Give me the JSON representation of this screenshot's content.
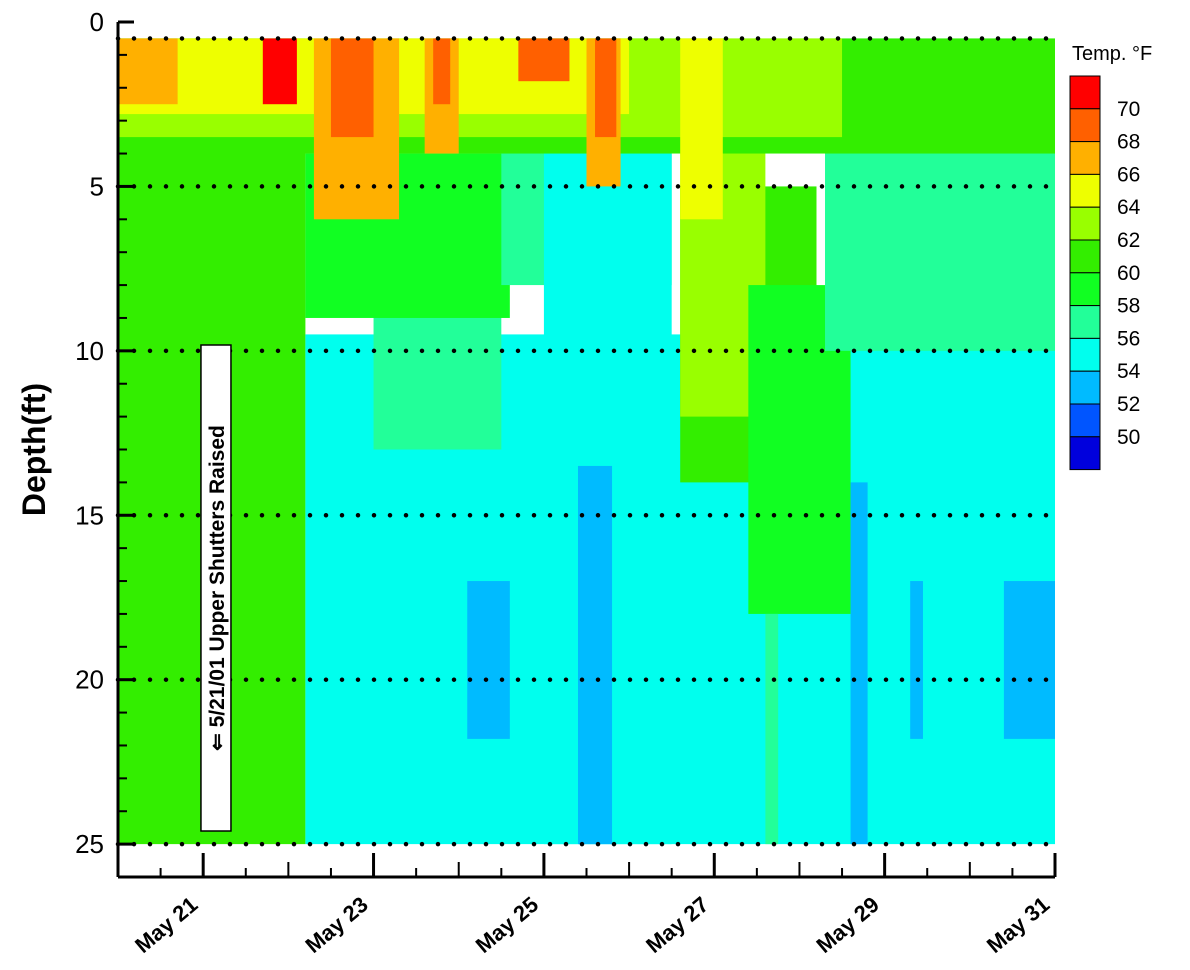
{
  "chart_data": {
    "type": "heatmap",
    "title": "",
    "xlabel": "",
    "ylabel": "Depth(ft)",
    "x_tick_labels": [
      "May 21",
      "May 23",
      "May 25",
      "May 27",
      "May 29",
      "May 31"
    ],
    "x_tick_days": [
      21,
      23,
      25,
      27,
      29,
      31
    ],
    "xlim_days": [
      20,
      31
    ],
    "y_ticks": [
      0,
      5,
      10,
      15,
      20,
      25
    ],
    "y_tick_labels": [
      "0",
      "5",
      "10",
      "15",
      "20",
      "25"
    ],
    "ylim": [
      0,
      26
    ],
    "y_inverted": true,
    "data_depth_range": [
      0.5,
      25
    ],
    "dotted_grid_depths": [
      0.5,
      5,
      10,
      15,
      20,
      25
    ],
    "legend": {
      "title": "Temp. °F",
      "position": "right",
      "levels": [
        {
          "label": "70",
          "color": "#ff0000"
        },
        {
          "label": "68",
          "color": "#ff6000"
        },
        {
          "label": "66",
          "color": "#ffb000"
        },
        {
          "label": "64",
          "color": "#eeff00"
        },
        {
          "label": "62",
          "color": "#99ff00"
        },
        {
          "label": "60",
          "color": "#33ee00"
        },
        {
          "label": "58",
          "color": "#11ff22"
        },
        {
          "label": "56",
          "color": "#22ff99"
        },
        {
          "label": "54",
          "color": "#00ffee"
        },
        {
          "label": "52",
          "color": "#00bbff"
        },
        {
          "label": "50",
          "color": "#0055ff"
        },
        {
          "label": "",
          "color": "#0000dd"
        }
      ]
    },
    "annotation": {
      "text": "⇐ 5/21/01  Upper Shutters Raised",
      "day": 21.15
    },
    "regions": [
      {
        "level": "60",
        "day_start": 20,
        "day_end": 22.2,
        "depth_top": 0.5,
        "depth_bottom": 25
      },
      {
        "level": "54",
        "day_start": 22.2,
        "day_end": 31,
        "depth_top": 9.5,
        "depth_bottom": 25
      },
      {
        "level": "56",
        "day_start": 23,
        "day_end": 24.5,
        "depth_top": 7,
        "depth_bottom": 13
      },
      {
        "level": "58",
        "day_start": 22.2,
        "day_end": 24.6,
        "depth_top": 4,
        "depth_bottom": 9
      },
      {
        "level": "56",
        "day_start": 24.5,
        "day_end": 26.5,
        "depth_top": 0.5,
        "depth_bottom": 8
      },
      {
        "level": "54",
        "day_start": 25,
        "day_end": 26.5,
        "depth_top": 4,
        "depth_bottom": 25
      },
      {
        "level": "60",
        "day_start": 26.6,
        "day_end": 28.2,
        "depth_top": 5,
        "depth_bottom": 14
      },
      {
        "level": "62",
        "day_start": 26.6,
        "day_end": 27.6,
        "depth_top": 3,
        "depth_bottom": 12
      },
      {
        "level": "58",
        "day_start": 27.4,
        "day_end": 28.6,
        "depth_top": 8,
        "depth_bottom": 18
      },
      {
        "level": "56",
        "day_start": 28.3,
        "day_end": 31,
        "depth_top": 0.5,
        "depth_bottom": 10
      },
      {
        "level": "60",
        "day_start": 20,
        "day_end": 31,
        "depth_top": 0.5,
        "depth_bottom": 4
      },
      {
        "level": "62",
        "day_start": 20,
        "day_end": 28.5,
        "depth_top": 0.5,
        "depth_bottom": 3.5
      },
      {
        "level": "64",
        "day_start": 20,
        "day_end": 26,
        "depth_top": 0.5,
        "depth_bottom": 2.8
      },
      {
        "level": "66",
        "day_start": 20,
        "day_end": 20.7,
        "depth_top": 0.5,
        "depth_bottom": 2.5
      },
      {
        "level": "66",
        "day_start": 22.3,
        "day_end": 23.3,
        "depth_top": 0.5,
        "depth_bottom": 6
      },
      {
        "level": "68",
        "day_start": 22.5,
        "day_end": 23,
        "depth_top": 0.5,
        "depth_bottom": 3.5
      },
      {
        "level": "70",
        "day_start": 21.7,
        "day_end": 22.1,
        "depth_top": 0.5,
        "depth_bottom": 2.5
      },
      {
        "level": "66",
        "day_start": 23.6,
        "day_end": 24,
        "depth_top": 0.5,
        "depth_bottom": 4
      },
      {
        "level": "68",
        "day_start": 23.7,
        "day_end": 23.9,
        "depth_top": 0.5,
        "depth_bottom": 2.5
      },
      {
        "level": "68",
        "day_start": 24.7,
        "day_end": 25.3,
        "depth_top": 0.5,
        "depth_bottom": 1.8
      },
      {
        "level": "66",
        "day_start": 25.5,
        "day_end": 25.9,
        "depth_top": 0.5,
        "depth_bottom": 5
      },
      {
        "level": "68",
        "day_start": 25.6,
        "day_end": 25.85,
        "depth_top": 0.5,
        "depth_bottom": 3.5
      },
      {
        "level": "64",
        "day_start": 26.6,
        "day_end": 27.1,
        "depth_top": 0.5,
        "depth_bottom": 6
      },
      {
        "level": "52",
        "day_start": 24.1,
        "day_end": 24.6,
        "depth_top": 17,
        "depth_bottom": 21.8
      },
      {
        "level": "52",
        "day_start": 25.4,
        "day_end": 25.8,
        "depth_top": 13.5,
        "depth_bottom": 25
      },
      {
        "level": "52",
        "day_start": 28.6,
        "day_end": 28.8,
        "depth_top": 14,
        "depth_bottom": 25
      },
      {
        "level": "52",
        "day_start": 29.3,
        "day_end": 29.45,
        "depth_top": 17,
        "depth_bottom": 21.8
      },
      {
        "level": "52",
        "day_start": 30.4,
        "day_end": 31,
        "depth_top": 17,
        "depth_bottom": 21.8
      },
      {
        "level": "56",
        "day_start": 27.6,
        "day_end": 27.75,
        "depth_top": 18,
        "depth_bottom": 25
      }
    ]
  }
}
